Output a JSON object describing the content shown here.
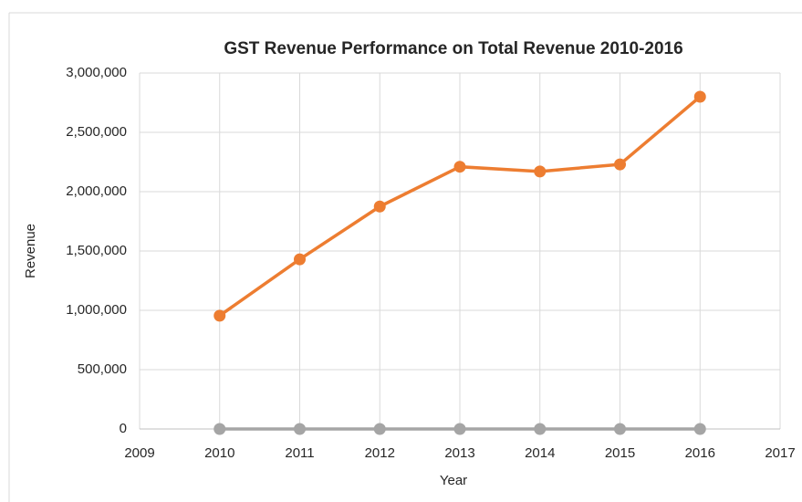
{
  "chart_data": {
    "type": "line",
    "title": "GST Revenue Performance on Total Revenue 2010-2016",
    "x_label": "Year",
    "y_label": "Revenue",
    "x": [
      2010,
      2011,
      2012,
      2013,
      2014,
      2015,
      2016
    ],
    "series": [
      {
        "color": "#a5a5a5",
        "values": [
          0,
          0,
          0,
          0,
          0,
          0,
          0
        ]
      },
      {
        "color": "#ed7d31",
        "values": [
          955000,
          1430000,
          1875000,
          2210000,
          2170000,
          2230000,
          2800000
        ]
      }
    ],
    "xlim": [
      2009,
      2017
    ],
    "xticks": [
      2009,
      2010,
      2011,
      2012,
      2013,
      2014,
      2015,
      2016,
      2017
    ],
    "ylim": [
      0,
      3000000
    ],
    "yticks": [
      0,
      {
        "value": 500000,
        "label": "500,000"
      },
      {
        "value": 1000000,
        "label": "1,000,000"
      },
      {
        "value": 1500000,
        "label": "1,500,000"
      },
      {
        "value": 2000000,
        "label": "2,000,000"
      },
      {
        "value": 2500000,
        "label": "2,500,000"
      },
      {
        "value": 3000000,
        "label": "3,000,000"
      }
    ],
    "grid": true
  }
}
